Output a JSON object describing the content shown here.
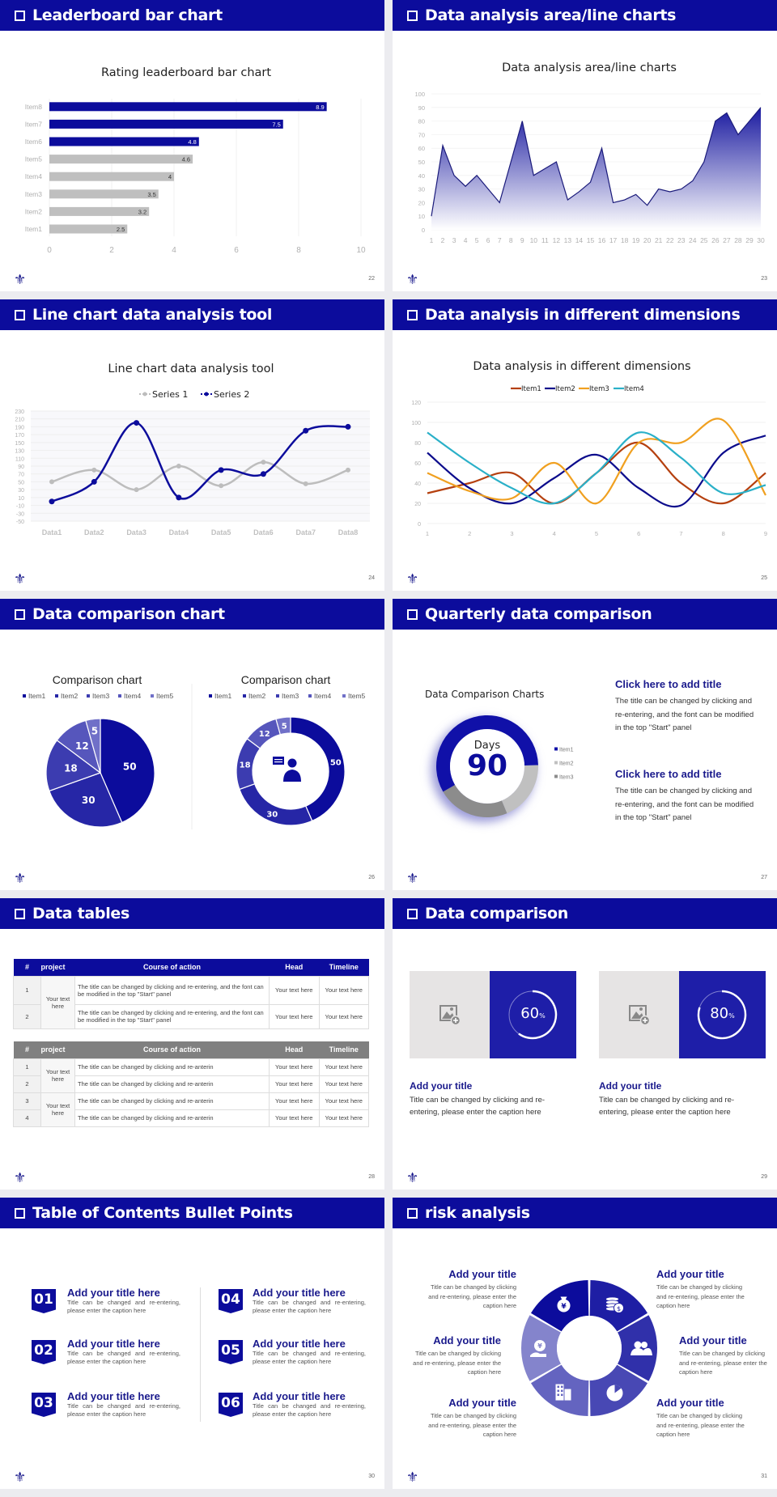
{
  "slides": {
    "s22": {
      "title": "Leaderboard bar chart",
      "page": "22"
    },
    "s23": {
      "title": "Data analysis area/line charts",
      "page": "23"
    },
    "s24": {
      "title": "Line chart data analysis tool",
      "page": "24"
    },
    "s25": {
      "title": "Data analysis in different dimensions",
      "page": "25"
    },
    "s26": {
      "title": "Data comparison chart",
      "page": "26"
    },
    "s27": {
      "title": "Quarterly data comparison",
      "page": "27"
    },
    "s28": {
      "title": "Data tables",
      "page": "28"
    },
    "s29": {
      "title": "Data comparison",
      "page": "29"
    },
    "s30": {
      "title": "Table of Contents Bullet Points",
      "page": "30"
    },
    "s31": {
      "title": "risk analysis",
      "page": "31"
    }
  },
  "colors": {
    "accent": "#0c0c9c",
    "gray_bar": "#bfbfbf"
  },
  "chart_data": [
    {
      "type": "bar",
      "orientation": "horizontal",
      "title": "Rating leaderboard bar chart",
      "categories": [
        "Item1",
        "Item2",
        "Item3",
        "Item4",
        "Item5",
        "Item6",
        "Item7",
        "Item8"
      ],
      "values": [
        2.5,
        3.2,
        3.5,
        4,
        4.6,
        4.8,
        7.5,
        8.9
      ],
      "bar_colors": [
        "#bfbfbf",
        "#bfbfbf",
        "#bfbfbf",
        "#bfbfbf",
        "#bfbfbf",
        "#0c0c9c",
        "#0c0c9c",
        "#0c0c9c"
      ],
      "xlim": [
        0,
        10
      ],
      "xticks": [
        0,
        2,
        4,
        6,
        8,
        10
      ],
      "grid": true,
      "data_labels": true
    },
    {
      "type": "area",
      "title": "Data analysis area/line charts",
      "x": [
        1,
        2,
        3,
        4,
        5,
        6,
        7,
        8,
        9,
        10,
        11,
        12,
        13,
        14,
        15,
        16,
        17,
        18,
        19,
        20,
        21,
        22,
        23,
        24,
        25,
        26,
        27,
        28,
        29,
        30
      ],
      "values": [
        10,
        62,
        40,
        32,
        40,
        30,
        20,
        50,
        80,
        40,
        45,
        50,
        22,
        28,
        35,
        60,
        20,
        22,
        26,
        18,
        30,
        28,
        30,
        36,
        50,
        80,
        86,
        70,
        80,
        90
      ],
      "ylim": [
        0,
        100
      ],
      "yticks": [
        0,
        10,
        20,
        30,
        40,
        50,
        60,
        70,
        80,
        90,
        100
      ],
      "grid": true,
      "color": "#1a1a7a"
    },
    {
      "type": "line",
      "smooth": true,
      "title": "Line chart data analysis tool",
      "categories": [
        "Data1",
        "Data2",
        "Data3",
        "Data4",
        "Data5",
        "Data6",
        "Data7",
        "Data8"
      ],
      "series": [
        {
          "name": "Series 1",
          "color": "#bdbdbd",
          "values": [
            50,
            80,
            30,
            90,
            40,
            100,
            45,
            80
          ]
        },
        {
          "name": "Series 2",
          "color": "#0c0c9c",
          "values": [
            0,
            50,
            200,
            10,
            80,
            70,
            180,
            190
          ]
        }
      ],
      "ylim": [
        -50,
        230
      ],
      "yticks": [
        -50,
        -30,
        -10,
        10,
        30,
        50,
        70,
        90,
        110,
        130,
        150,
        170,
        190,
        210,
        230
      ],
      "legend": "top",
      "grid": true
    },
    {
      "type": "line",
      "smooth": true,
      "title": "Data analysis in different dimensions",
      "categories": [
        "1",
        "2",
        "3",
        "4",
        "5",
        "6",
        "7",
        "8",
        "9"
      ],
      "series": [
        {
          "name": "Item1",
          "color": "#b5400f",
          "values": [
            30,
            40,
            50,
            20,
            50,
            80,
            40,
            20,
            50
          ]
        },
        {
          "name": "Item2",
          "color": "#0c0c8c",
          "values": [
            70,
            35,
            20,
            45,
            68,
            35,
            18,
            70,
            87
          ]
        },
        {
          "name": "Item3",
          "color": "#f0a020",
          "values": [
            50,
            32,
            25,
            60,
            20,
            80,
            80,
            102,
            28
          ]
        },
        {
          "name": "Item4",
          "color": "#2ab0c8",
          "values": [
            90,
            60,
            35,
            20,
            50,
            90,
            65,
            30,
            38
          ]
        }
      ],
      "ylim": [
        0,
        120
      ],
      "yticks": [
        0,
        20,
        40,
        60,
        80,
        100,
        120
      ],
      "legend": "top",
      "grid": true
    },
    {
      "type": "pie",
      "title": "Comparison chart",
      "categories": [
        "Item1",
        "Item2",
        "Item3",
        "Item4",
        "Item5"
      ],
      "values": [
        50,
        30,
        18,
        12,
        5
      ],
      "colors": [
        "#0c0c9c",
        "#2626a6",
        "#3c3cb0",
        "#5656bc",
        "#7070c8"
      ],
      "legend": "top",
      "data_labels": true
    },
    {
      "type": "pie",
      "donut": true,
      "title": "Comparison chart",
      "categories": [
        "Item1",
        "Item2",
        "Item3",
        "Item4",
        "Item5"
      ],
      "values": [
        50,
        30,
        18,
        12,
        5
      ],
      "colors": [
        "#0c0c9c",
        "#2626a6",
        "#3c3cb0",
        "#5656bc",
        "#7070c8"
      ],
      "legend": "top",
      "data_labels": true
    },
    {
      "type": "pie",
      "donut": true,
      "title": "Data Comparison Charts",
      "categories": [
        "Item1",
        "Item2",
        "Item3"
      ],
      "values": [
        58,
        19,
        23
      ],
      "colors": [
        "#1010a8",
        "#c0c0c0",
        "#8c8c8c"
      ],
      "legend": "right"
    }
  ],
  "quarterly": {
    "center_label": "Days",
    "center_value": "90",
    "blocks": [
      {
        "title": "Click here to add title",
        "body": "The title can be changed by clicking and re-entering, and the font can be modified in the top \"Start\" panel"
      },
      {
        "title": "Click here to add title",
        "body": "The title can be changed by clicking and re-entering, and the font can be modified in the top \"Start\" panel"
      }
    ]
  },
  "tables": {
    "headers": [
      "#",
      "project",
      "Course of action",
      "Head",
      "Timeline"
    ],
    "header_colors": [
      "#0c0c9c",
      "#808080"
    ],
    "table1": {
      "project": "Your text here",
      "rows": [
        {
          "num": "1",
          "course": "The title can be changed by clicking and re-entering, and the font can be modified in the top \"Start\" panel",
          "head": "Your text here",
          "timeline": "Your text here"
        },
        {
          "num": "2",
          "course": "The title can be changed by clicking and re-entering, and the font can be modified in the top \"Start\" panel",
          "head": "Your text here",
          "timeline": "Your text here"
        }
      ]
    },
    "table2": {
      "projects": [
        "Your text here",
        "Your text here"
      ],
      "rows": [
        {
          "num": "1",
          "course": "The title can be changed by clicking and re-anterin",
          "head": "Your text here",
          "timeline": "Your text here"
        },
        {
          "num": "2",
          "course": "The title can be changed by clicking and re-anterin",
          "head": "Your text here",
          "timeline": "Your text here"
        },
        {
          "num": "3",
          "course": "The title can be changed by clicking and re-anterin",
          "head": "Your text here",
          "timeline": "Your text here"
        },
        {
          "num": "4",
          "course": "The title can be changed by clicking and re-anterin",
          "head": "Your text here",
          "timeline": "Your text here"
        }
      ]
    }
  },
  "data_comparison": {
    "items": [
      {
        "percent": 60,
        "percent_value": "60",
        "percent_sign": "%",
        "title": "Add your title",
        "body": "Title can be changed by clicking and re-entering, please enter the caption here",
        "image_icon": "image-add-icon"
      },
      {
        "percent": 80,
        "percent_value": "80",
        "percent_sign": "%",
        "title": "Add your title",
        "body": "Title can be changed by clicking and re-entering, please enter the caption here",
        "image_icon": "image-add-icon"
      }
    ]
  },
  "toc": {
    "items": [
      {
        "num": "01",
        "title": "Add your title here",
        "body": "Title can be changed and re-entering, please enter the caption here"
      },
      {
        "num": "02",
        "title": "Add your title here",
        "body": "Title can be changed and re-entering, please enter the caption here"
      },
      {
        "num": "03",
        "title": "Add your title here",
        "body": "Title can be changed and re-entering, please enter the caption here"
      },
      {
        "num": "04",
        "title": "Add your title here",
        "body": "Title can be changed and re-entering, please enter the caption here"
      },
      {
        "num": "05",
        "title": "Add your title here",
        "body": "Title can be changed and re-entering, please enter the caption here"
      },
      {
        "num": "06",
        "title": "Add your title here",
        "body": "Title can be changed and re-entering, please enter the caption here"
      }
    ]
  },
  "risk": {
    "items": [
      {
        "title": "Add your title",
        "body": "Title can be changed by clicking and re-entering, please enter the caption here",
        "icon": "money-bag-yen-icon"
      },
      {
        "title": "Add your title",
        "body": "Title can be changed by clicking and re-entering, please enter the caption here",
        "icon": "coins-dollar-icon"
      },
      {
        "title": "Add your title",
        "body": "Title can be changed by clicking and re-entering, please enter the caption here",
        "icon": "people-icon"
      },
      {
        "title": "Add your title",
        "body": "Title can be changed by clicking and re-entering, please enter the caption here",
        "icon": "pie-chart-icon"
      },
      {
        "title": "Add your title",
        "body": "Title can be changed by clicking and re-entering, please enter the caption here",
        "icon": "building-icon"
      },
      {
        "title": "Add your title",
        "body": "Title can be changed by clicking and re-entering, please enter the caption here",
        "icon": "hand-yen-icon"
      }
    ]
  }
}
